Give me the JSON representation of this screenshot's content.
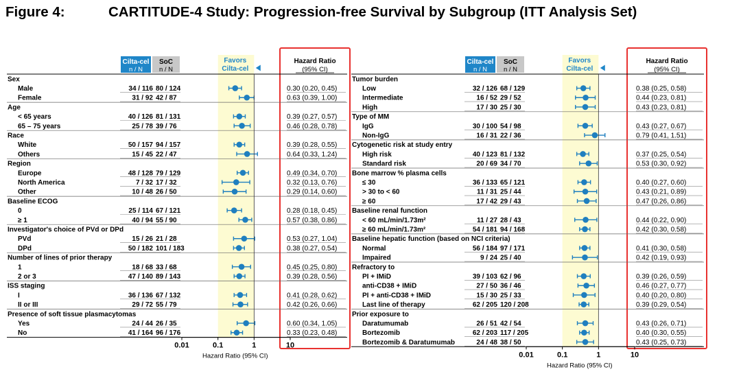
{
  "figure": {
    "number": "Figure 4:",
    "title": "CARTITUDE-4 Study: Progression-free Survival by Subgroup (ITT Analysis Set)"
  },
  "colors": {
    "arm1_header_bg": "#1f86c8",
    "arm2_header_bg": "#c8c8c8",
    "favors_text": "#1f86c8",
    "marker": "#1f7fbf",
    "plot_band": "#fdfbd2",
    "highlight_box": "#e8312f",
    "section_bg": "#eeeeee"
  },
  "headers": {
    "arm1": "Cilta-cel",
    "arm2": "SoC",
    "counts": "n / N",
    "favors": "Favors",
    "favors_arm": "Cilta-cel",
    "hr": "Hazard Ratio",
    "ci": "(95% CI)"
  },
  "axis": {
    "xlabel": "Hazard Ratio (95% CI)",
    "scale": "log",
    "ticks": [
      "0.01",
      "0.1",
      "1",
      "10"
    ],
    "xlim": [
      0.01,
      10
    ],
    "band": [
      0.1,
      1
    ]
  },
  "chart_data": [
    {
      "type": "forest",
      "panel": "left",
      "xlabel": "Hazard Ratio (95% CI)",
      "xscale": "log",
      "xlim": [
        0.01,
        10
      ],
      "rows": [
        {
          "section": "Sex"
        },
        {
          "label": "Male",
          "cilta": "34 / 116",
          "soc": "80 / 124",
          "hr": 0.3,
          "lo": 0.2,
          "hi": 0.45,
          "hr_text": "0.30 (0.20, 0.45)"
        },
        {
          "label": "Female",
          "cilta": "31 / 92",
          "soc": "42 / 87",
          "hr": 0.63,
          "lo": 0.39,
          "hi": 1.0,
          "hr_text": "0.63 (0.39, 1.00)"
        },
        {
          "section": "Age"
        },
        {
          "label": "< 65 years",
          "cilta": "40 / 126",
          "soc": "81 / 131",
          "hr": 0.39,
          "lo": 0.27,
          "hi": 0.57,
          "hr_text": "0.39 (0.27, 0.57)"
        },
        {
          "label": "65 – 75 years",
          "cilta": "25 / 78",
          "soc": "39 / 76",
          "hr": 0.46,
          "lo": 0.28,
          "hi": 0.78,
          "hr_text": "0.46 (0.28, 0.78)"
        },
        {
          "section": "Race"
        },
        {
          "label": "White",
          "cilta": "50 / 157",
          "soc": "94 / 157",
          "hr": 0.39,
          "lo": 0.28,
          "hi": 0.55,
          "hr_text": "0.39 (0.28, 0.55)"
        },
        {
          "label": "Others",
          "cilta": "15 / 45",
          "soc": "22 / 47",
          "hr": 0.64,
          "lo": 0.33,
          "hi": 1.24,
          "hr_text": "0.64 (0.33, 1.24)"
        },
        {
          "section": "Region"
        },
        {
          "label": "Europe",
          "cilta": "48 / 128",
          "soc": "79 / 129",
          "hr": 0.49,
          "lo": 0.34,
          "hi": 0.7,
          "hr_text": "0.49 (0.34, 0.70)"
        },
        {
          "label": "North America",
          "cilta": "7 / 32",
          "soc": "17 / 32",
          "hr": 0.32,
          "lo": 0.13,
          "hi": 0.76,
          "hr_text": "0.32 (0.13, 0.76)"
        },
        {
          "label": "Other",
          "cilta": "10 / 48",
          "soc": "26 / 50",
          "hr": 0.29,
          "lo": 0.14,
          "hi": 0.6,
          "hr_text": "0.29 (0.14, 0.60)"
        },
        {
          "section": "Baseline ECOG"
        },
        {
          "label": "0",
          "cilta": "25 / 114",
          "soc": "67 / 121",
          "hr": 0.28,
          "lo": 0.18,
          "hi": 0.45,
          "hr_text": "0.28 (0.18, 0.45)"
        },
        {
          "label": "≥ 1",
          "cilta": "40 / 94",
          "soc": "55 / 90",
          "hr": 0.57,
          "lo": 0.38,
          "hi": 0.86,
          "hr_text": "0.57 (0.38, 0.86)"
        },
        {
          "section": "Investigator's choice of PVd or DPd"
        },
        {
          "label": "PVd",
          "cilta": "15 / 26",
          "soc": "21 / 28",
          "hr": 0.53,
          "lo": 0.27,
          "hi": 1.04,
          "hr_text": "0.53 (0.27, 1.04)"
        },
        {
          "label": "DPd",
          "cilta": "50 / 182",
          "soc": "101 / 183",
          "hr": 0.38,
          "lo": 0.27,
          "hi": 0.54,
          "hr_text": "0.38 (0.27, 0.54)"
        },
        {
          "section": "Number of lines of prior therapy"
        },
        {
          "label": "1",
          "cilta": "18 / 68",
          "soc": "33 / 68",
          "hr": 0.45,
          "lo": 0.25,
          "hi": 0.8,
          "hr_text": "0.45 (0.25, 0.80)"
        },
        {
          "label": "2 or 3",
          "cilta": "47 / 140",
          "soc": "89 / 143",
          "hr": 0.39,
          "lo": 0.28,
          "hi": 0.56,
          "hr_text": "0.39 (0.28, 0.56)"
        },
        {
          "section": "ISS staging"
        },
        {
          "label": "I",
          "cilta": "36 / 136",
          "soc": "67 / 132",
          "hr": 0.41,
          "lo": 0.28,
          "hi": 0.62,
          "hr_text": "0.41 (0.28, 0.62)"
        },
        {
          "label": "II or III",
          "cilta": "29 / 72",
          "soc": "55 / 79",
          "hr": 0.42,
          "lo": 0.26,
          "hi": 0.66,
          "hr_text": "0.42 (0.26, 0.66)"
        },
        {
          "section": "Presence of soft tissue plasmacytomas"
        },
        {
          "label": "Yes",
          "cilta": "24 / 44",
          "soc": "26 / 35",
          "hr": 0.6,
          "lo": 0.34,
          "hi": 1.05,
          "hr_text": "0.60 (0.34, 1.05)"
        },
        {
          "label": "No",
          "cilta": "41 / 164",
          "soc": "96 / 176",
          "hr": 0.33,
          "lo": 0.23,
          "hi": 0.48,
          "hr_text": "0.33 (0.23, 0.48)"
        }
      ]
    },
    {
      "type": "forest",
      "panel": "right",
      "xlabel": "Hazard Ratio (95% CI)",
      "xscale": "log",
      "xlim": [
        0.01,
        10
      ],
      "rows": [
        {
          "section": "Tumor burden"
        },
        {
          "label": "Low",
          "cilta": "32 / 126",
          "soc": "68 / 129",
          "hr": 0.38,
          "lo": 0.25,
          "hi": 0.58,
          "hr_text": "0.38 (0.25, 0.58)"
        },
        {
          "label": "Intermediate",
          "cilta": "16 / 52",
          "soc": "29 / 52",
          "hr": 0.44,
          "lo": 0.23,
          "hi": 0.81,
          "hr_text": "0.44 (0.23, 0.81)"
        },
        {
          "label": "High",
          "cilta": "17 / 30",
          "soc": "25 / 30",
          "hr": 0.43,
          "lo": 0.23,
          "hi": 0.81,
          "hr_text": "0.43 (0.23, 0.81)"
        },
        {
          "section": "Type of MM"
        },
        {
          "label": "IgG",
          "cilta": "30 / 100",
          "soc": "54 / 98",
          "hr": 0.43,
          "lo": 0.27,
          "hi": 0.67,
          "hr_text": "0.43 (0.27, 0.67)"
        },
        {
          "label": "Non-IgG",
          "cilta": "16 / 31",
          "soc": "22 / 36",
          "hr": 0.79,
          "lo": 0.41,
          "hi": 1.51,
          "hr_text": "0.79 (0.41, 1.51)"
        },
        {
          "section": "Cytogenetic risk at study entry"
        },
        {
          "label": "High risk",
          "cilta": "40 / 123",
          "soc": "81 / 132",
          "hr": 0.37,
          "lo": 0.25,
          "hi": 0.54,
          "hr_text": "0.37 (0.25, 0.54)"
        },
        {
          "label": "Standard risk",
          "cilta": "20 / 69",
          "soc": "34 / 70",
          "hr": 0.53,
          "lo": 0.3,
          "hi": 0.92,
          "hr_text": "0.53 (0.30, 0.92)"
        },
        {
          "section": "Bone marrow % plasma cells"
        },
        {
          "label": "≤ 30",
          "cilta": "36 / 133",
          "soc": "65 / 121",
          "hr": 0.4,
          "lo": 0.27,
          "hi": 0.6,
          "hr_text": "0.40 (0.27, 0.60)"
        },
        {
          "label": "> 30 to < 60",
          "cilta": "11 / 31",
          "soc": "25 / 44",
          "hr": 0.43,
          "lo": 0.21,
          "hi": 0.89,
          "hr_text": "0.43 (0.21, 0.89)"
        },
        {
          "label": "≥ 60",
          "cilta": "17 / 42",
          "soc": "29 / 43",
          "hr": 0.47,
          "lo": 0.26,
          "hi": 0.86,
          "hr_text": "0.47 (0.26, 0.86)"
        },
        {
          "section": "Baseline renal function"
        },
        {
          "label": "< 60 mL/min/1.73m²",
          "cilta": "11 / 27",
          "soc": "28 / 43",
          "hr": 0.44,
          "lo": 0.22,
          "hi": 0.9,
          "hr_text": "0.44 (0.22, 0.90)"
        },
        {
          "label": "≥ 60 mL/min/1.73m²",
          "cilta": "54 / 181",
          "soc": "94 / 168",
          "hr": 0.42,
          "lo": 0.3,
          "hi": 0.58,
          "hr_text": "0.42 (0.30, 0.58)"
        },
        {
          "section": "Baseline hepatic function (based on NCI criteria)"
        },
        {
          "label": "Normal",
          "cilta": "56 / 184",
          "soc": "97 / 171",
          "hr": 0.41,
          "lo": 0.3,
          "hi": 0.58,
          "hr_text": "0.41 (0.30, 0.58)"
        },
        {
          "label": "Impaired",
          "cilta": "9 / 24",
          "soc": "25 / 40",
          "hr": 0.42,
          "lo": 0.19,
          "hi": 0.93,
          "hr_text": "0.42 (0.19, 0.93)"
        },
        {
          "section": "Refractory to"
        },
        {
          "label": "PI + IMiD",
          "cilta": "39 / 103",
          "soc": "62 / 96",
          "hr": 0.39,
          "lo": 0.26,
          "hi": 0.59,
          "hr_text": "0.39 (0.26, 0.59)"
        },
        {
          "label": "anti-CD38 + IMiD",
          "cilta": "27 / 50",
          "soc": "36 / 46",
          "hr": 0.46,
          "lo": 0.27,
          "hi": 0.77,
          "hr_text": "0.46 (0.27, 0.77)"
        },
        {
          "label": "PI + anti-CD38 + IMiD",
          "cilta": "15 / 30",
          "soc": "25 / 33",
          "hr": 0.4,
          "lo": 0.2,
          "hi": 0.8,
          "hr_text": "0.40 (0.20, 0.80)"
        },
        {
          "label": "Last line of therapy",
          "cilta": "62 / 205",
          "soc": "120 / 208",
          "hr": 0.39,
          "lo": 0.29,
          "hi": 0.54,
          "hr_text": "0.39 (0.29, 0.54)"
        },
        {
          "section": "Prior exposure to"
        },
        {
          "label": "Daratumumab",
          "cilta": "26 / 51",
          "soc": "42 / 54",
          "hr": 0.43,
          "lo": 0.26,
          "hi": 0.71,
          "hr_text": "0.43 (0.26, 0.71)"
        },
        {
          "label": "Bortezomib",
          "cilta": "62 / 203",
          "soc": "117 / 205",
          "hr": 0.4,
          "lo": 0.3,
          "hi": 0.55,
          "hr_text": "0.40 (0.30, 0.55)"
        },
        {
          "label": "Bortezomib & Daratumumab",
          "cilta": "24 / 48",
          "soc": "38 / 50",
          "hr": 0.43,
          "lo": 0.25,
          "hi": 0.73,
          "hr_text": "0.43 (0.25, 0.73)"
        }
      ]
    }
  ]
}
